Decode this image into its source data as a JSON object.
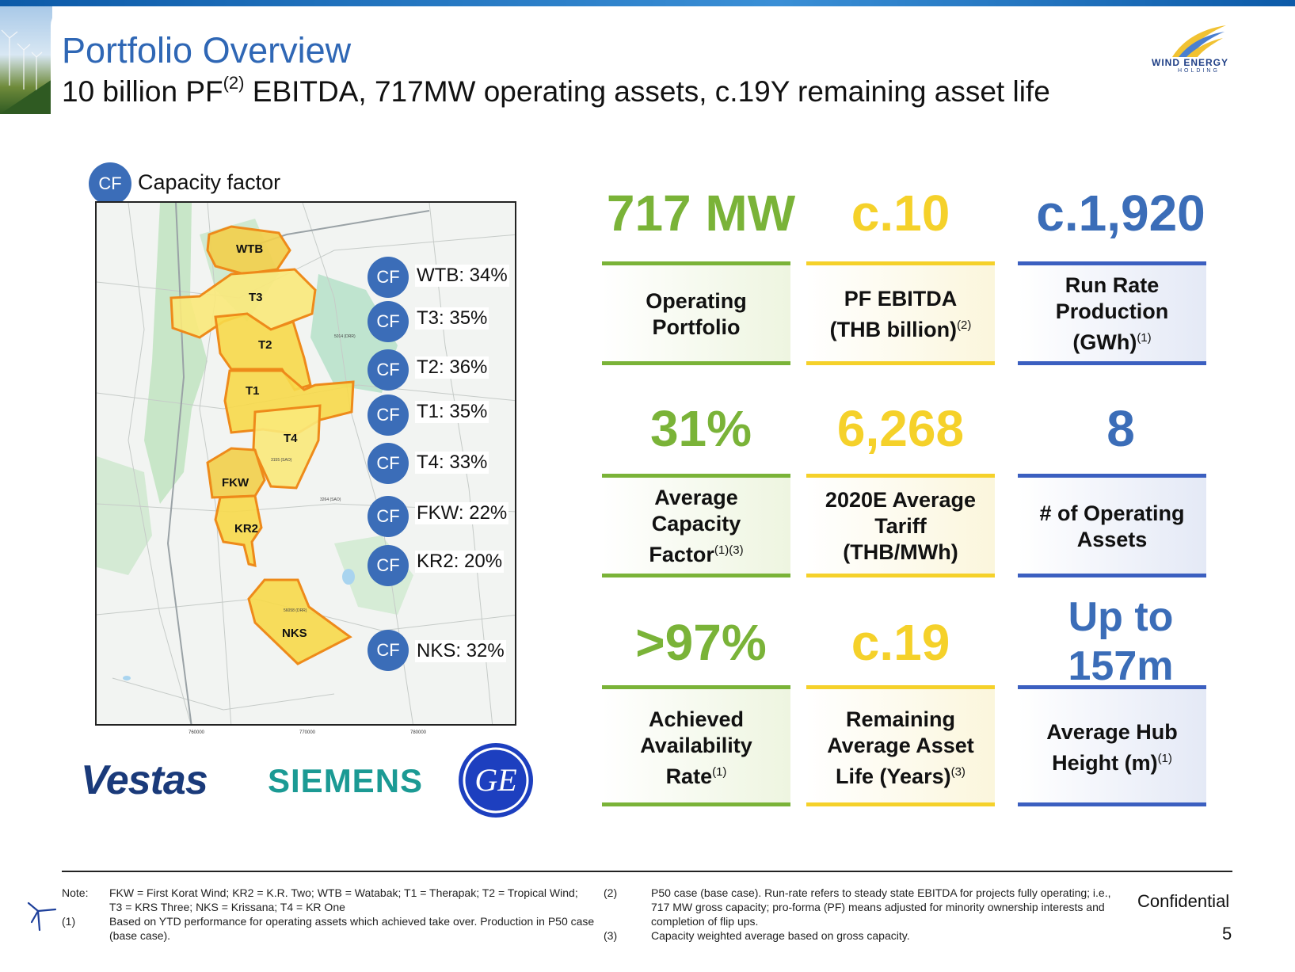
{
  "header": {
    "title": "Portfolio Overview",
    "subtitle_pre": "10 billion PF",
    "subtitle_sup": "(2)",
    "subtitle_post": " EBITDA, 717MW operating assets, c.19Y remaining asset life",
    "logo_text": "WIND ENERGY",
    "logo_sub": "HOLDING"
  },
  "map": {
    "legend_badge": "CF",
    "legend_label": "Capacity factor",
    "sites": [
      {
        "code": "WTB",
        "badge": "CF",
        "label": "WTB: 34%"
      },
      {
        "code": "T3",
        "badge": "CF",
        "label": "T3: 35%"
      },
      {
        "code": "T2",
        "badge": "CF",
        "label": "T2: 36%"
      },
      {
        "code": "T1",
        "badge": "CF",
        "label": "T1: 35%"
      },
      {
        "code": "T4",
        "badge": "CF",
        "label": "T4: 33%"
      },
      {
        "code": "FKW",
        "badge": "CF",
        "label": "FKW: 22%"
      },
      {
        "code": "KR2",
        "badge": "CF",
        "label": "KR2: 20%"
      },
      {
        "code": "NKS",
        "badge": "CF",
        "label": "NKS: 32%"
      }
    ],
    "x_ticks": [
      "760000",
      "770000",
      "780000"
    ]
  },
  "brands": {
    "vestas": "Vestas",
    "siemens": "SIEMENS",
    "ge": "GE"
  },
  "kpis": [
    {
      "value": "717 MW",
      "label_lines": [
        "Operating",
        "Portfolio"
      ],
      "note": "",
      "color": "#7ab338"
    },
    {
      "value": "c.10",
      "label_lines": [
        "PF EBITDA",
        "(THB billion)"
      ],
      "note": "(2)",
      "color": "#f5d12a"
    },
    {
      "value": "c.1,920",
      "label_lines": [
        "Run Rate",
        "Production",
        "(GWh)"
      ],
      "note": "(1)",
      "color": "#3b6db8"
    },
    {
      "value": "31%",
      "label_lines": [
        "Average",
        "Capacity",
        "Factor"
      ],
      "note": "(1)(3)",
      "color": "#7ab338"
    },
    {
      "value": "6,268",
      "label_lines": [
        "2020E Average",
        "Tariff",
        "(THB/MWh)"
      ],
      "note": "",
      "color": "#f5d12a"
    },
    {
      "value": "8",
      "label_lines": [
        "# of Operating",
        "Assets"
      ],
      "note": "",
      "color": "#3b6db8"
    },
    {
      "value": ">97%",
      "label_lines": [
        "Achieved",
        "Availability",
        "Rate"
      ],
      "note": "(1)",
      "color": "#7ab338"
    },
    {
      "value": "c.19",
      "label_lines": [
        "Remaining",
        "Average Asset",
        "Life (Years)"
      ],
      "note": "(3)",
      "color": "#f5d12a"
    },
    {
      "value_lines": [
        "Up to",
        "157m"
      ],
      "label_lines": [
        "Average Hub",
        "Height (m)"
      ],
      "note": "(1)",
      "color": "#3b6db8"
    }
  ],
  "footnotes": {
    "note_label": "Note:",
    "note_text": "FKW = First Korat Wind; KR2 = K.R. Two; WTB = Watabak; T1 = Therapak; T2 = Tropical Wind; T3 = KRS Three; NKS = Krissana; T4 = KR One",
    "n1_label": "(1)",
    "n1_text": "Based on YTD performance for operating assets which achieved take over. Production in P50 case (base case).",
    "n2_label": "(2)",
    "n2_text": "P50 case (base case). Run-rate refers to steady state EBITDA for projects fully operating; i.e., 717 MW gross capacity; pro-forma (PF) means adjusted for minority ownership interests and completion of flip ups.",
    "n3_label": "(3)",
    "n3_text": "Capacity weighted average based on gross capacity."
  },
  "confidential": "Confidential",
  "page_number": "5"
}
